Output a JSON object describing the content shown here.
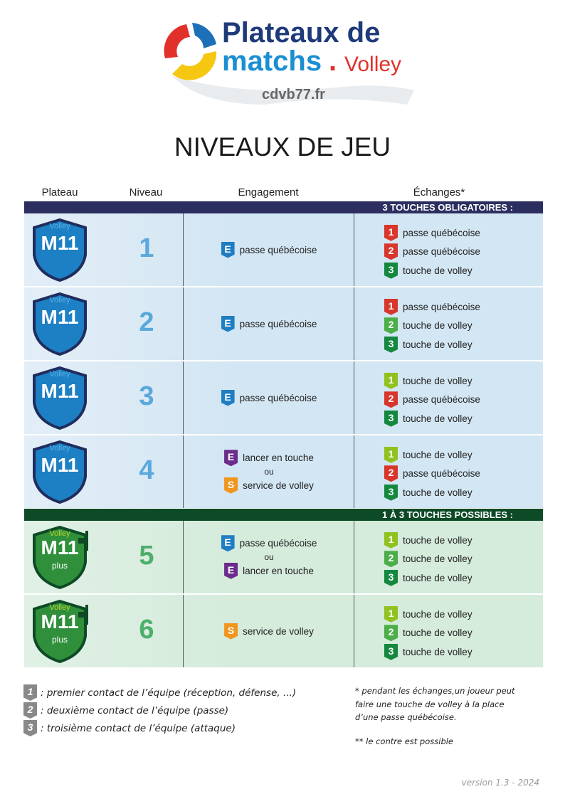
{
  "logo": {
    "line1": "Plateaux de",
    "line2a": "matchs",
    "line2b": ".",
    "line2c": "Volley",
    "site": "cdvb77.fr"
  },
  "title": "NIVEAUX DE JEU",
  "columns": [
    "Plateau",
    "Niveau",
    "Engagement",
    "Échanges*"
  ],
  "colors": {
    "navy": "#2b2e5f",
    "blue_row": "#d3e6f3",
    "dark_green": "#0d4a26",
    "green_row": "#d5ebdc",
    "red": "#d8362c",
    "green3": "#14883f",
    "lime": "#8fc21f",
    "green2": "#4cae48",
    "E_blue": "#1f7dc2",
    "E_purple": "#6b2c8c",
    "S_orange": "#f1951c",
    "gray": "#888888"
  },
  "sections": [
    {
      "banner": "3 TOUCHES OBLIGATOIRES :",
      "theme": "blue",
      "rows": [
        {
          "badge": {
            "top": "Volley",
            "main": "M11",
            "sub": ""
          },
          "level": "1",
          "engagement": [
            {
              "icon": "E",
              "color": "E_blue",
              "text": "passe québécoise"
            }
          ],
          "exchanges": [
            {
              "n": "1",
              "color": "red",
              "text": "passe québécoise"
            },
            {
              "n": "2",
              "color": "red",
              "text": "passe québécoise"
            },
            {
              "n": "3",
              "color": "green3",
              "text": "touche de volley"
            }
          ]
        },
        {
          "badge": {
            "top": "Volley",
            "main": "M11",
            "sub": ""
          },
          "level": "2",
          "engagement": [
            {
              "icon": "E",
              "color": "E_blue",
              "text": "passe québécoise"
            }
          ],
          "exchanges": [
            {
              "n": "1",
              "color": "red",
              "text": "passe québécoise"
            },
            {
              "n": "2",
              "color": "green2",
              "text": "touche de volley"
            },
            {
              "n": "3",
              "color": "green3",
              "text": "touche de volley"
            }
          ]
        },
        {
          "badge": {
            "top": "Volley",
            "main": "M11",
            "sub": ""
          },
          "level": "3",
          "engagement": [
            {
              "icon": "E",
              "color": "E_blue",
              "text": "passe québécoise"
            }
          ],
          "exchanges": [
            {
              "n": "1",
              "color": "lime",
              "text": "touche de volley"
            },
            {
              "n": "2",
              "color": "red",
              "text": "passe québécoise"
            },
            {
              "n": "3",
              "color": "green3",
              "text": "touche de volley"
            }
          ]
        },
        {
          "badge": {
            "top": "Volley",
            "main": "M11",
            "sub": ""
          },
          "level": "4",
          "engagement": [
            {
              "icon": "E",
              "color": "E_purple",
              "text": "lancer en touche"
            },
            {
              "icon": "S",
              "color": "S_orange",
              "text": "service de volley"
            }
          ],
          "or": "ou",
          "exchanges": [
            {
              "n": "1",
              "color": "lime",
              "text": "touche de volley"
            },
            {
              "n": "2",
              "color": "red",
              "text": "passe québécoise"
            },
            {
              "n": "3",
              "color": "green3",
              "text": "touche de volley"
            }
          ]
        }
      ]
    },
    {
      "banner": "1 À 3 TOUCHES POSSIBLES :",
      "theme": "green",
      "rows": [
        {
          "badge": {
            "top": "Volley",
            "main": "M11",
            "sub": "plus"
          },
          "level": "5",
          "engagement": [
            {
              "icon": "E",
              "color": "E_blue",
              "text": "passe québécoise"
            },
            {
              "icon": "E",
              "color": "E_purple",
              "text": "lancer en touche"
            }
          ],
          "or": "ou",
          "exchanges": [
            {
              "n": "1",
              "color": "lime",
              "text": "touche de volley"
            },
            {
              "n": "2",
              "color": "green2",
              "text": "touche de volley"
            },
            {
              "n": "3",
              "color": "green3",
              "text": "touche de volley"
            }
          ]
        },
        {
          "badge": {
            "top": "Volley",
            "main": "M11",
            "sub": "plus"
          },
          "level": "6",
          "engagement": [
            {
              "icon": "S",
              "color": "S_orange",
              "text": "service de volley"
            }
          ],
          "exchanges": [
            {
              "n": "1",
              "color": "lime",
              "text": "touche de volley"
            },
            {
              "n": "2",
              "color": "green2",
              "text": "touche de volley"
            },
            {
              "n": "3",
              "color": "green3",
              "text": "touche de volley"
            }
          ]
        }
      ]
    }
  ],
  "legend": [
    {
      "n": "1",
      "text": ": premier contact de l’équipe (réception, défense, ...)"
    },
    {
      "n": "2",
      "text": ": deuxième contact de l’équipe (passe)"
    },
    {
      "n": "3",
      "text": ": troisième contact de l’équipe (attaque)"
    }
  ],
  "notes": {
    "note1": [
      "* pendant les échanges,un joueur peut",
      "faire une touche de volley à la place",
      "d’une passe québécoise."
    ],
    "note2": "** le contre est possible"
  },
  "version": "version 1.3 - 2024"
}
